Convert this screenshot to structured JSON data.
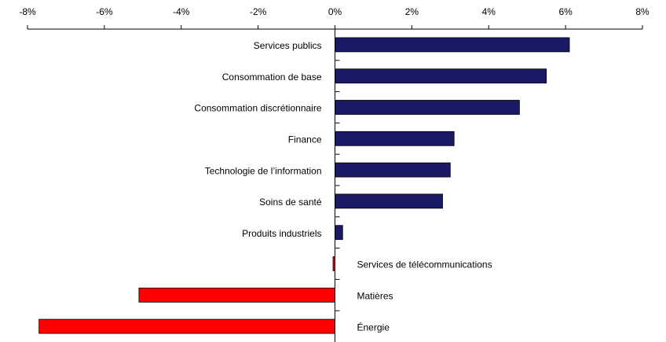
{
  "chart_data": {
    "type": "barh",
    "categories": [
      "Services publics",
      "Consommation de base",
      "Consommation discrétionnaire",
      "Finance",
      "Technologie de l’information",
      "Soins de santé",
      "Produits industriels",
      "Services de télécommunications",
      "Matières",
      "Énergie"
    ],
    "values": [
      6.1,
      5.5,
      4.8,
      3.1,
      3.0,
      2.8,
      0.2,
      -0.05,
      -5.1,
      -7.7
    ],
    "color": "#191966",
    "negative_color": "#ff0000",
    "xlim": [
      -8,
      8
    ],
    "xticks": [
      {
        "value": -8,
        "label": "-8%"
      },
      {
        "value": -6,
        "label": "-6%"
      },
      {
        "value": -4,
        "label": "-4%"
      },
      {
        "value": -2,
        "label": "-2%"
      },
      {
        "value": 0,
        "label": "0%"
      },
      {
        "value": 2,
        "label": "2%"
      },
      {
        "value": 4,
        "label": "4%"
      },
      {
        "value": 6,
        "label": "6%"
      },
      {
        "value": 8,
        "label": "8%"
      }
    ]
  }
}
